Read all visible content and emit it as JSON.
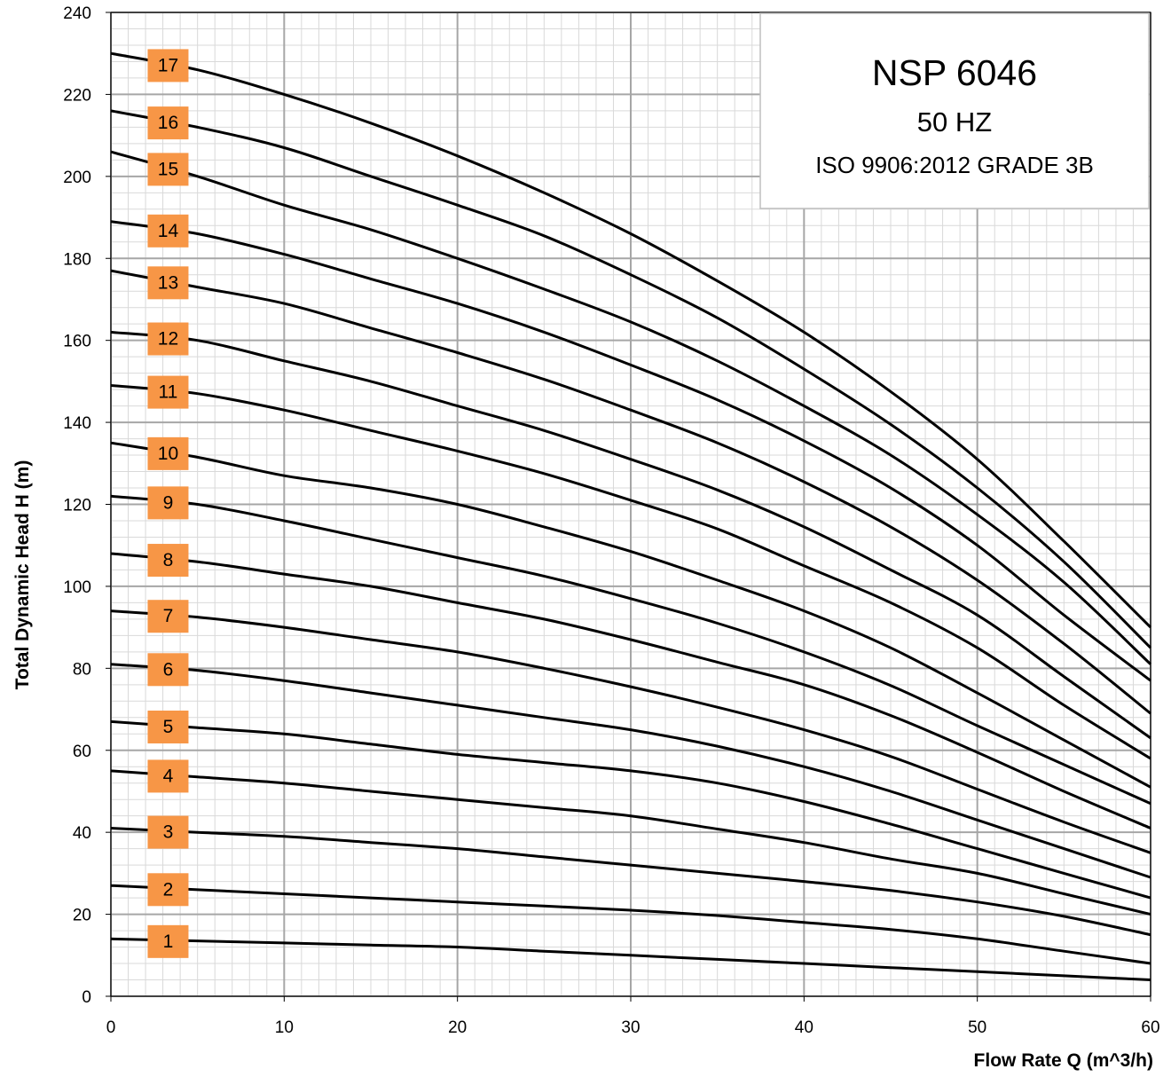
{
  "chart_data": {
    "type": "line",
    "title": "NSP 6046",
    "subtitle": "50 HZ",
    "standard": "ISO 9906:2012 GRADE 3B",
    "xlabel": "Flow Rate Q (m^3/h)",
    "ylabel": "Total Dynamic Head  H (m)",
    "xlim": [
      0,
      60
    ],
    "ylim": [
      0,
      240
    ],
    "xticks": [
      0,
      10,
      20,
      30,
      40,
      50,
      60
    ],
    "yticks": [
      0,
      20,
      40,
      60,
      80,
      100,
      120,
      140,
      160,
      180,
      200,
      220,
      240
    ],
    "grid": "major and minor",
    "legend": "none",
    "colors": {
      "curve": "#000000",
      "stage_label_bg": "#f79646",
      "major_grid": "#a6a6a6",
      "minor_grid": "#d9d9d9",
      "frame": "#000000"
    },
    "x": [
      0,
      5,
      10,
      15,
      20,
      25,
      30,
      35,
      40,
      45,
      50,
      55,
      60
    ],
    "series": [
      {
        "name": "1",
        "values": [
          14,
          13.5,
          13,
          12.5,
          12,
          11,
          10,
          9,
          8,
          7,
          6,
          5,
          4
        ]
      },
      {
        "name": "2",
        "values": [
          27,
          26,
          25,
          24,
          23,
          22,
          21,
          19.7,
          18,
          16.3,
          14,
          11,
          8
        ]
      },
      {
        "name": "3",
        "values": [
          41,
          40,
          39,
          37.5,
          36,
          34,
          32,
          30,
          28,
          25.8,
          23,
          19.5,
          15
        ]
      },
      {
        "name": "4",
        "values": [
          55,
          53.5,
          52,
          50,
          48,
          46,
          44,
          40.8,
          37.5,
          33.5,
          30,
          25,
          20
        ]
      },
      {
        "name": "5",
        "values": [
          67,
          65.5,
          64,
          61.5,
          59,
          57,
          55,
          52,
          47.5,
          42,
          36,
          30,
          24
        ]
      },
      {
        "name": "6",
        "values": [
          81,
          79.5,
          77,
          74,
          71,
          68,
          65,
          61,
          56,
          50,
          43,
          36,
          29
        ]
      },
      {
        "name": "7",
        "values": [
          94,
          92.5,
          90,
          87,
          84,
          80,
          75.5,
          70.5,
          65,
          58.5,
          50.5,
          42.5,
          35
        ]
      },
      {
        "name": "8",
        "values": [
          108,
          106,
          103,
          100,
          96,
          92,
          87,
          81.5,
          76,
          68.5,
          59.5,
          50,
          41
        ]
      },
      {
        "name": "9",
        "values": [
          122,
          120,
          116,
          111.5,
          107,
          102.5,
          97,
          91,
          84,
          75.8,
          66,
          56.5,
          47
        ]
      },
      {
        "name": "10",
        "values": [
          135,
          131.5,
          127,
          124,
          120,
          114.5,
          108.5,
          101.5,
          94,
          85,
          74,
          62.5,
          51
        ]
      },
      {
        "name": "11",
        "values": [
          149,
          147,
          143,
          138,
          133,
          127.5,
          121,
          114,
          105,
          96,
          85,
          71,
          58
        ]
      },
      {
        "name": "12",
        "values": [
          162,
          160,
          155,
          150,
          144,
          138,
          131,
          123.5,
          114.5,
          104,
          93,
          78,
          63
        ]
      },
      {
        "name": "13",
        "values": [
          177,
          173,
          169,
          163,
          157,
          150.5,
          143,
          135,
          125.5,
          114.5,
          101.5,
          86,
          69
        ]
      },
      {
        "name": "14",
        "values": [
          189,
          186,
          181,
          175,
          169,
          162,
          154,
          145.5,
          135.5,
          124,
          110,
          93,
          77
        ]
      },
      {
        "name": "15",
        "values": [
          206,
          200,
          193,
          187,
          180,
          172.5,
          164.5,
          155,
          144,
          132,
          117.5,
          101,
          81
        ]
      },
      {
        "name": "16",
        "values": [
          216,
          212,
          207,
          200,
          193,
          185.5,
          176,
          165.5,
          153,
          139.5,
          124,
          106,
          85
        ]
      },
      {
        "name": "17",
        "values": [
          230,
          226,
          220,
          213,
          205,
          196,
          186,
          174.5,
          162,
          147.5,
          131,
          111,
          90
        ]
      }
    ]
  }
}
